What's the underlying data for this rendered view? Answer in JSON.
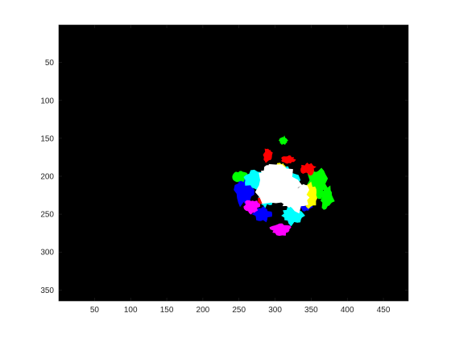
{
  "image_plot": {
    "type": "heatmap",
    "background_color": "#000000",
    "x_range": [
      0.5,
      484.5
    ],
    "y_range": [
      0.5,
      364.5
    ],
    "x_ticks": [
      {
        "value": 50,
        "label": "50"
      },
      {
        "value": 100,
        "label": "100"
      },
      {
        "value": 150,
        "label": "150"
      },
      {
        "value": 200,
        "label": "200"
      },
      {
        "value": 250,
        "label": "250"
      },
      {
        "value": 300,
        "label": "300"
      },
      {
        "value": 350,
        "label": "350"
      },
      {
        "value": 400,
        "label": "400"
      },
      {
        "value": 450,
        "label": "450"
      }
    ],
    "y_ticks": [
      {
        "value": 50,
        "label": "50"
      },
      {
        "value": 100,
        "label": "100"
      },
      {
        "value": 150,
        "label": "150"
      },
      {
        "value": 200,
        "label": "200"
      },
      {
        "value": 250,
        "label": "250"
      },
      {
        "value": 300,
        "label": "300"
      },
      {
        "value": 350,
        "label": "350"
      }
    ],
    "regions": [
      {
        "color": "#0000ff",
        "cx": 258,
        "cy": 218,
        "rx": 14,
        "ry": 22
      },
      {
        "color": "#0000ff",
        "cx": 282,
        "cy": 250,
        "rx": 12,
        "ry": 10
      },
      {
        "color": "#0000ff",
        "cx": 342,
        "cy": 238,
        "rx": 10,
        "ry": 8
      },
      {
        "color": "#00ff00",
        "cx": 252,
        "cy": 200,
        "rx": 10,
        "ry": 8
      },
      {
        "color": "#00ff00",
        "cx": 358,
        "cy": 210,
        "rx": 14,
        "ry": 22
      },
      {
        "color": "#00ff00",
        "cx": 372,
        "cy": 228,
        "rx": 10,
        "ry": 16
      },
      {
        "color": "#00ff00",
        "cx": 312,
        "cy": 153,
        "rx": 6,
        "ry": 6
      },
      {
        "color": "#00ffff",
        "cx": 274,
        "cy": 205,
        "rx": 16,
        "ry": 12
      },
      {
        "color": "#00ffff",
        "cx": 288,
        "cy": 228,
        "rx": 10,
        "ry": 12
      },
      {
        "color": "#00ffff",
        "cx": 325,
        "cy": 252,
        "rx": 16,
        "ry": 12
      },
      {
        "color": "#00ffff",
        "cx": 310,
        "cy": 205,
        "rx": 22,
        "ry": 22
      },
      {
        "color": "#ff00ff",
        "cx": 268,
        "cy": 240,
        "rx": 10,
        "ry": 10
      },
      {
        "color": "#ff00ff",
        "cx": 308,
        "cy": 270,
        "rx": 14,
        "ry": 8
      },
      {
        "color": "#ff0000",
        "cx": 290,
        "cy": 172,
        "rx": 6,
        "ry": 10
      },
      {
        "color": "#ff0000",
        "cx": 318,
        "cy": 178,
        "rx": 10,
        "ry": 6
      },
      {
        "color": "#ff0000",
        "cx": 346,
        "cy": 190,
        "rx": 10,
        "ry": 8
      },
      {
        "color": "#ff0000",
        "cx": 280,
        "cy": 232,
        "rx": 4,
        "ry": 6
      },
      {
        "color": "#ffff00",
        "cx": 348,
        "cy": 225,
        "rx": 12,
        "ry": 16
      },
      {
        "color": "#ffff00",
        "cx": 306,
        "cy": 188,
        "rx": 8,
        "ry": 6
      },
      {
        "color": "#ffffff",
        "cx": 305,
        "cy": 212,
        "rx": 30,
        "ry": 28
      },
      {
        "color": "#ffffff",
        "cx": 330,
        "cy": 228,
        "rx": 20,
        "ry": 18
      },
      {
        "color": "#ffffff",
        "cx": 290,
        "cy": 200,
        "rx": 12,
        "ry": 14
      }
    ]
  }
}
